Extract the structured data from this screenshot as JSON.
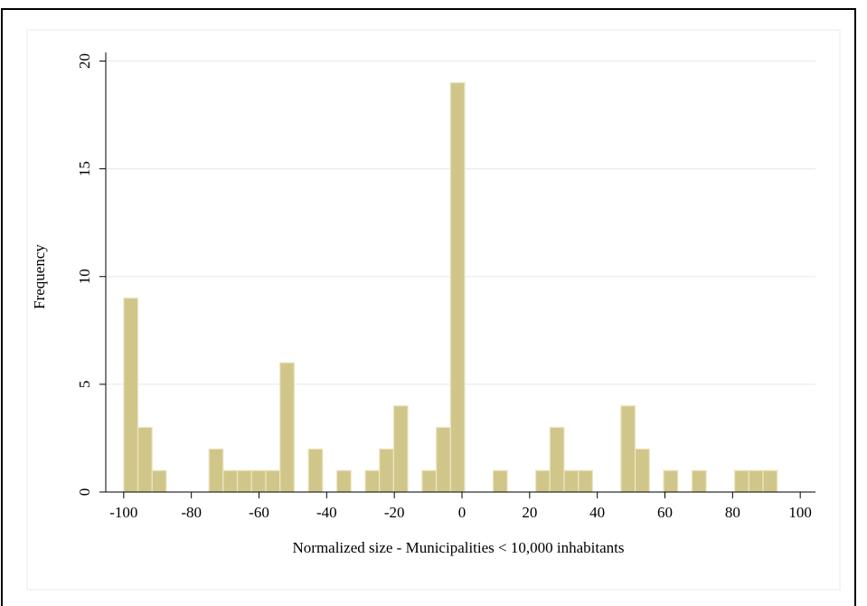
{
  "chart_data": {
    "type": "histogram",
    "x_label": "Normalized size - Municipalities < 10,000 inhabitants",
    "y_label": "Frequency",
    "bins": [
      -100,
      -95.8,
      -91.6,
      -87.4,
      -83.2,
      -79,
      -74.8,
      -70.6,
      -66.4,
      -62.2,
      -58,
      -53.8,
      -49.6,
      -45.4,
      -41.2,
      -37,
      -32.8,
      -28.6,
      -24.4,
      -20.2,
      -16,
      -11.8,
      -7.6,
      -3.4,
      0.8,
      5,
      9.2,
      13.4,
      17.6,
      21.8,
      26,
      30.2,
      34.4,
      38.6,
      42.8,
      47,
      51.2,
      55.4,
      59.6,
      63.8,
      68,
      72.2,
      76.4,
      80.6,
      84.8,
      89,
      93.2
    ],
    "counts": [
      9,
      3,
      1,
      0,
      0,
      0,
      2,
      1,
      1,
      1,
      1,
      6,
      0,
      2,
      0,
      1,
      0,
      1,
      2,
      4,
      0,
      1,
      3,
      19,
      0,
      0,
      1,
      0,
      0,
      1,
      3,
      1,
      1,
      0,
      0,
      4,
      2,
      0,
      1,
      0,
      1,
      0,
      0,
      1,
      1,
      1
    ],
    "color": "#d1c68a",
    "xlim": [
      -105.3,
      104.5
    ],
    "ylim": [
      0,
      20.4
    ],
    "xticks": [
      -100,
      -80,
      -60,
      -40,
      -20,
      0,
      20,
      40,
      60,
      80,
      100
    ],
    "yticks": [
      0,
      5,
      10,
      15,
      20
    ],
    "grid": true
  }
}
